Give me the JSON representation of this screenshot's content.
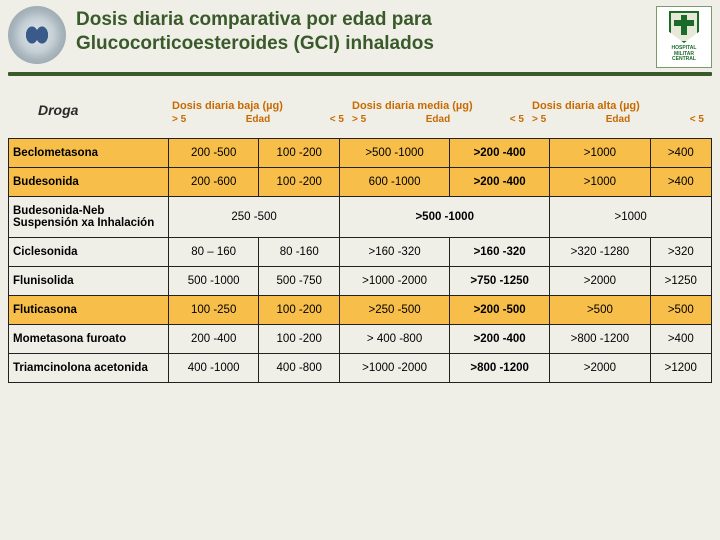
{
  "title": {
    "line1": "Dosis diaria comparativa por edad para",
    "line2": "Glucocorticoesteroides (GCI) inhalados"
  },
  "logo_right": {
    "line1": "HOSPITAL",
    "line2": "MILITAR",
    "line3": "CENTRAL"
  },
  "droga_label": "Droga",
  "dose_groups": {
    "low": {
      "title": "Dosis diaria baja (µg)",
      "left": "> 5",
      "mid": "Edad",
      "right": "< 5"
    },
    "med": {
      "title": "Dosis diaria media (µg)",
      "left": "> 5",
      "mid": "Edad",
      "right": "< 5"
    },
    "high": {
      "title": "Dosis diaria alta (µg)",
      "left": "> 5",
      "mid": "Edad",
      "right": "< 5"
    }
  },
  "rows": [
    {
      "hl": true,
      "drug": "Beclometasona",
      "low_a": "200 -500",
      "low_b": "100 -200",
      "med_a": ">500 -1000",
      "med_b": ">200 -400",
      "hi_a": ">1000",
      "hi_b": ">400"
    },
    {
      "hl": true,
      "drug": "Budesonida",
      "low_a": "200 -600",
      "low_b": "100 -200",
      "med_a": "600 -1000",
      "med_b": ">200 -400",
      "hi_a": ">1000",
      "hi_b": ">400"
    },
    {
      "hl": false,
      "drug": "Budesonida-Neb Suspensión xa Inhalación",
      "low_span": "250 -500",
      "med_span": ">500 -1000",
      "hi_span": ">1000"
    },
    {
      "hl": false,
      "drug": "Ciclesonida",
      "low_a": "80 – 160",
      "low_b": "80 -160",
      "med_a": ">160 -320",
      "med_b": ">160 -320",
      "hi_a": ">320 -1280",
      "hi_b": ">320"
    },
    {
      "hl": false,
      "drug": "Flunisolida",
      "low_a": "500 -1000",
      "low_b": "500 -750",
      "med_a": ">1000 -2000",
      "med_b": ">750 -1250",
      "hi_a": ">2000",
      "hi_b": ">1250"
    },
    {
      "hl": true,
      "drug": "Fluticasona",
      "low_a": "100 -250",
      "low_b": "100 -200",
      "med_a": ">250 -500",
      "med_b": ">200 -500",
      "hi_a": ">500",
      "hi_b": ">500"
    },
    {
      "hl": false,
      "drug": "Mometasona furoato",
      "low_a": "200 -400",
      "low_b": "100 -200",
      "med_a": "> 400 -800",
      "med_b": ">200 -400",
      "hi_a": ">800 -1200",
      "hi_b": ">400"
    },
    {
      "hl": false,
      "drug": "Triamcinolona acetonida",
      "low_a": "400 -1000",
      "low_b": "400 -800",
      "med_a": ">1000 -2000",
      "med_b": ">800 -1200",
      "hi_a": ">2000",
      "hi_b": ">1200"
    }
  ],
  "colors": {
    "title": "#3a5a2a",
    "dose_header": "#c76a00",
    "highlight_row": "#f7be4a",
    "border": "#222222",
    "background": "#efefe8"
  }
}
